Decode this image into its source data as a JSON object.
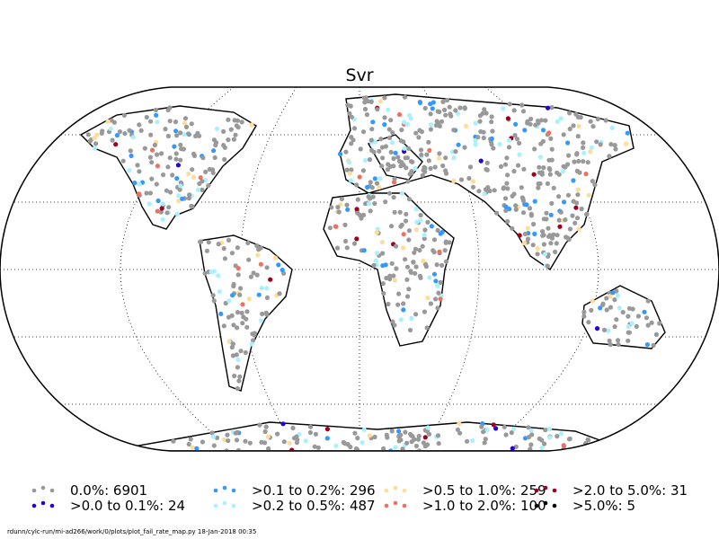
{
  "title": "Svr",
  "legend": [
    {
      "label": "0.0%: 6901",
      "color": "#999999"
    },
    {
      "label": ">0.0 to 0.1%: 24",
      "color": "#2a00d5"
    },
    {
      "label": ">0.1 to 0.2%: 296",
      "color": "#3399ff"
    },
    {
      "label": ">0.2 to 0.5%: 487",
      "color": "#aaf0ff"
    },
    {
      "label": ">0.5 to 1.0%: 259",
      "color": "#ffdd99"
    },
    {
      "label": ">1.0 to 2.0%: 100",
      "color": "#f07060"
    },
    {
      "label": ">2.0 to 5.0%: 31",
      "color": "#a00020"
    },
    {
      "label": ">5.0%: 5",
      "color": "#000000"
    }
  ],
  "footer": "rdunn/cylc-run/mi-ad266/work/0/plots/plot_fail_rate_map.py   18-Jan-2018 00:35"
}
